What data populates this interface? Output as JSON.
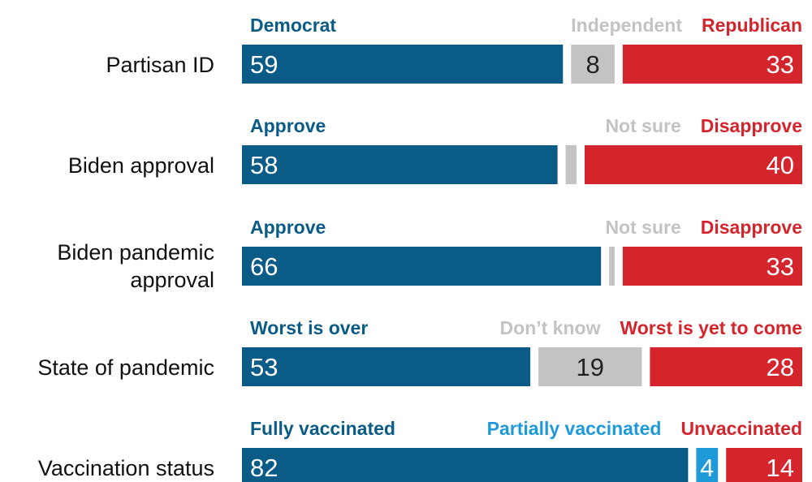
{
  "chart_data": {
    "type": "bar",
    "orientation": "horizontal",
    "stacked": true,
    "colors": {
      "blue": "#0a5b86",
      "gray": "#c3c3c3",
      "red": "#d4242c",
      "light_blue": "#1f9ad8"
    },
    "rows": [
      {
        "label": "Partisan ID",
        "segments": [
          {
            "name": "Democrat",
            "value": 59,
            "value_label": "59",
            "color": "blue",
            "header_color": "blue",
            "value_color": "#ffffff"
          },
          {
            "name": "Independent",
            "value": 8,
            "value_label": "8",
            "color": "gray",
            "header_color": "gray",
            "value_color": "#222222"
          },
          {
            "name": "Republican",
            "value": 33,
            "value_label": "33",
            "color": "red",
            "header_color": "red",
            "value_color": "#ffffff"
          }
        ]
      },
      {
        "label": "Biden approval",
        "segments": [
          {
            "name": "Approve",
            "value": 58,
            "value_label": "58",
            "color": "blue",
            "header_color": "blue",
            "value_color": "#ffffff"
          },
          {
            "name": "Not sure",
            "value": 2,
            "value_label": "",
            "color": "gray",
            "header_color": "gray",
            "value_color": "#222222"
          },
          {
            "name": "Disapprove",
            "value": 40,
            "value_label": "40",
            "color": "red",
            "header_color": "red",
            "value_color": "#ffffff"
          }
        ]
      },
      {
        "label": "Biden pandemic approval",
        "label_lines": [
          "Biden pandemic",
          "approval"
        ],
        "segments": [
          {
            "name": "Approve",
            "value": 66,
            "value_label": "66",
            "color": "blue",
            "header_color": "blue",
            "value_color": "#ffffff"
          },
          {
            "name": "Not sure",
            "value": 1,
            "value_label": "",
            "color": "gray",
            "header_color": "gray",
            "value_color": "#222222"
          },
          {
            "name": "Disapprove",
            "value": 33,
            "value_label": "33",
            "color": "red",
            "header_color": "red",
            "value_color": "#ffffff"
          }
        ]
      },
      {
        "label": "State of pandemic",
        "segments": [
          {
            "name": "Worst is over",
            "value": 53,
            "value_label": "53",
            "color": "blue",
            "header_color": "blue",
            "value_color": "#ffffff"
          },
          {
            "name": "Don’t know",
            "value": 19,
            "value_label": "19",
            "color": "gray",
            "header_color": "gray",
            "value_color": "#222222"
          },
          {
            "name": "Worst is yet to come",
            "value": 28,
            "value_label": "28",
            "color": "red",
            "header_color": "red",
            "value_color": "#ffffff"
          }
        ]
      },
      {
        "label": "Vaccination status",
        "segments": [
          {
            "name": "Fully vaccinated",
            "value": 82,
            "value_label": "82",
            "color": "blue",
            "header_color": "blue",
            "value_color": "#ffffff"
          },
          {
            "name": "Partially vaccinated",
            "value": 4,
            "value_label": "4",
            "color": "light_blue",
            "header_color": "light_blue",
            "value_color": "#ffffff"
          },
          {
            "name": "Unvaccinated",
            "value": 14,
            "value_label": "14",
            "color": "red",
            "header_color": "red",
            "value_color": "#ffffff"
          }
        ]
      }
    ]
  }
}
